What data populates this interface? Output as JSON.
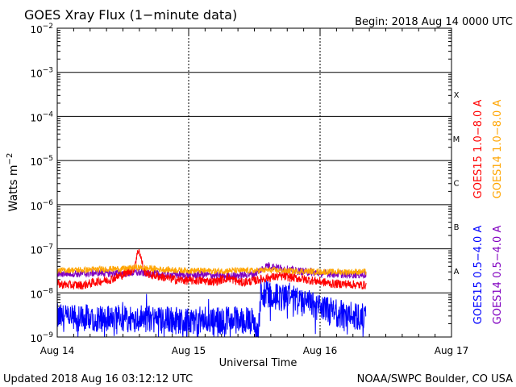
{
  "chart_data": {
    "type": "line",
    "title": "GOES Xray Flux (1−minute data)",
    "begin_label": "Begin:  2018 Aug 14 0000 UTC",
    "ylabel": "Watts m",
    "ylabel_exp": "−2",
    "xlabel": "Universal Time",
    "y_scale": "log",
    "ylim": [
      1e-09,
      0.01
    ],
    "y_ticks": [
      {
        "base": "10",
        "exp": "−2"
      },
      {
        "base": "10",
        "exp": "−3"
      },
      {
        "base": "10",
        "exp": "−4"
      },
      {
        "base": "10",
        "exp": "−5"
      },
      {
        "base": "10",
        "exp": "−6"
      },
      {
        "base": "10",
        "exp": "−7"
      },
      {
        "base": "10",
        "exp": "−8"
      },
      {
        "base": "10",
        "exp": "−9"
      }
    ],
    "x_unit": "days since 2018 Aug 14 0000 UTC",
    "xlim": [
      0,
      3
    ],
    "x_ticks": [
      "Aug 14",
      "Aug 15",
      "Aug 16",
      "Aug 17"
    ],
    "flare_classes": [
      {
        "label": "X",
        "value": 0.000316
      },
      {
        "label": "M",
        "value": 3.16e-05
      },
      {
        "label": "C",
        "value": 3.16e-06
      },
      {
        "label": "B",
        "value": 3.16e-07
      },
      {
        "label": "A",
        "value": 3.16e-08
      }
    ],
    "series": [
      {
        "name": "GOES15 1.0−8.0 A",
        "color": "#ff0000",
        "x": [
          0,
          0.1,
          0.2,
          0.3,
          0.4,
          0.5,
          0.58,
          0.62,
          0.66,
          0.7,
          0.8,
          0.9,
          1.0,
          1.1,
          1.2,
          1.3,
          1.4,
          1.5,
          1.6,
          1.7,
          1.8,
          1.9,
          2.0,
          2.1,
          2.2,
          2.3,
          2.35
        ],
        "values": [
          1.6e-08,
          1.5e-08,
          1.5e-08,
          1.8e-08,
          2e-08,
          2.6e-08,
          3.4e-08,
          1e-07,
          3.2e-08,
          2.6e-08,
          2.3e-08,
          2e-08,
          1.9e-08,
          1.9e-08,
          1.8e-08,
          2.2e-08,
          1.7e-08,
          1.9e-08,
          2.2e-08,
          2.4e-08,
          2.2e-08,
          2e-08,
          1.8e-08,
          1.6e-08,
          1.6e-08,
          1.5e-08,
          1.5e-08
        ]
      },
      {
        "name": "GOES14 1.0−8.0 A",
        "color": "#ffa500",
        "x": [
          0,
          0.1,
          0.2,
          0.3,
          0.4,
          0.5,
          0.6,
          0.7,
          0.8,
          0.9,
          1.0,
          1.1,
          1.2,
          1.3,
          1.4,
          1.5,
          1.6,
          1.7,
          1.8,
          1.9,
          2.0,
          2.1,
          2.2,
          2.3,
          2.35
        ],
        "values": [
          3.2e-08,
          3.3e-08,
          3.3e-08,
          3.4e-08,
          3.5e-08,
          3.5e-08,
          3.8e-08,
          3.6e-08,
          3.4e-08,
          3.3e-08,
          3.2e-08,
          3.2e-08,
          3.1e-08,
          3.2e-08,
          3.2e-08,
          3.2e-08,
          3.3e-08,
          3.2e-08,
          3.1e-08,
          3.1e-08,
          3e-08,
          3e-08,
          3e-08,
          3e-08,
          3e-08
        ]
      },
      {
        "name": "GOES15 0.5−4.0 A",
        "color": "#0000ff",
        "x": [
          0,
          0.1,
          0.2,
          0.3,
          0.4,
          0.5,
          0.6,
          0.7,
          0.8,
          0.9,
          1.0,
          1.1,
          1.2,
          1.3,
          1.4,
          1.5,
          1.53,
          1.55,
          1.6,
          1.7,
          1.8,
          1.9,
          2.0,
          2.1,
          2.2,
          2.3,
          2.35
        ],
        "values": [
          2.8e-09,
          2.6e-09,
          2.7e-09,
          2.6e-09,
          2.8e-09,
          2.5e-09,
          2.7e-09,
          2.6e-09,
          2.5e-09,
          2.4e-09,
          2.3e-09,
          2.4e-09,
          2.3e-09,
          2.5e-09,
          2.4e-09,
          2.3e-09,
          1e-09,
          1.1e-08,
          9e-09,
          8e-09,
          7e-09,
          6e-09,
          4.5e-09,
          3.6e-09,
          3.2e-09,
          2.9e-09,
          2.8e-09
        ]
      },
      {
        "name": "GOES14 0.5−4.0 A",
        "color": "#8000c0",
        "x": [
          0,
          0.1,
          0.2,
          0.3,
          0.4,
          0.5,
          0.6,
          0.7,
          0.8,
          0.9,
          1.0,
          1.1,
          1.2,
          1.3,
          1.4,
          1.5,
          1.6,
          1.7,
          1.8,
          1.9,
          2.0,
          2.1,
          2.2,
          2.3,
          2.35
        ],
        "values": [
          2.7e-08,
          2.8e-08,
          2.7e-08,
          2.9e-08,
          2.8e-08,
          2.8e-08,
          2.9e-08,
          2.8e-08,
          2.6e-08,
          2.6e-08,
          2.5e-08,
          2.6e-08,
          2.5e-08,
          2.4e-08,
          2.5e-08,
          2.7e-08,
          4.2e-08,
          3.6e-08,
          3.2e-08,
          3e-08,
          2.8e-08,
          2.7e-08,
          2.6e-08,
          2.6e-08,
          2.6e-08
        ]
      }
    ]
  },
  "footer": {
    "updated": "Updated 2018 Aug 16 03:12:12 UTC",
    "credit": "NOAA/SWPC Boulder, CO USA"
  }
}
